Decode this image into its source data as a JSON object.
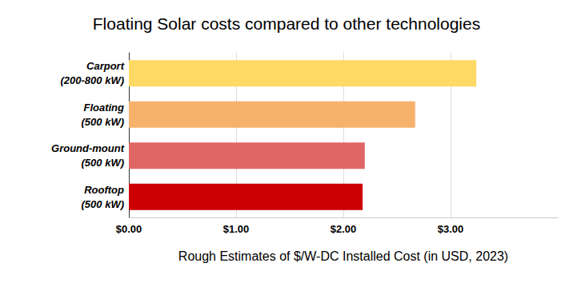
{
  "chart_data": {
    "type": "bar",
    "title": "Floating Solar costs compared to other technologies",
    "orientation": "horizontal",
    "categories": [
      "Carport\n(200-800 kW)",
      "Floating\n(500 kW)",
      "Ground-mount\n(500 kW)",
      "Rooftop\n(500 kW)"
    ],
    "values": [
      3.24,
      2.67,
      2.2,
      2.18
    ],
    "colors": [
      "#ffd966",
      "#f6b26b",
      "#e06666",
      "#cc0000"
    ],
    "xlabel": "Rough Estimates of $/W-DC Installed Cost (in USD, 2023)",
    "xlim": [
      0,
      4
    ],
    "xticks": [
      {
        "value": 0,
        "label": "$0.00"
      },
      {
        "value": 1,
        "label": "$1.00"
      },
      {
        "value": 2,
        "label": "$2.00"
      },
      {
        "value": 3,
        "label": "$3.00"
      }
    ],
    "grid": true
  }
}
